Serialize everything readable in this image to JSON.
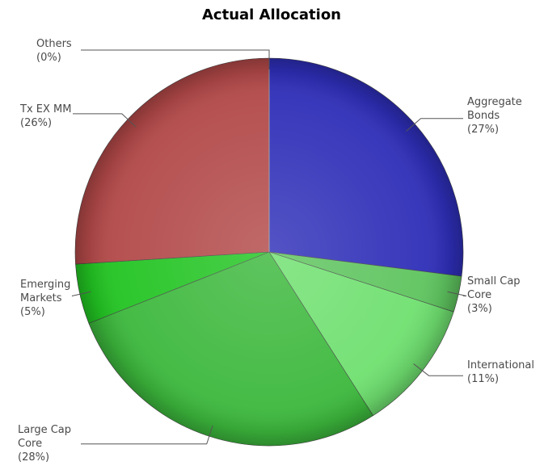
{
  "chart_data": {
    "type": "pie",
    "title": "Actual Allocation",
    "slices": [
      {
        "label_lines": [
          "Aggregate",
          "Bonds"
        ],
        "pct_text": "(27%)",
        "value": 27,
        "color": "#2e2eb8"
      },
      {
        "label_lines": [
          "Small Cap",
          "Core"
        ],
        "pct_text": "(3%)",
        "value": 3,
        "color": "#5ec45e"
      },
      {
        "label_lines": [
          "International"
        ],
        "pct_text": "(11%)",
        "value": 11,
        "color": "#6fe06f"
      },
      {
        "label_lines": [
          "Large Cap",
          "Core"
        ],
        "pct_text": "(28%)",
        "value": 28,
        "color": "#3cb83c"
      },
      {
        "label_lines": [
          "Emerging",
          "Markets"
        ],
        "pct_text": "(5%)",
        "value": 5,
        "color": "#22c422"
      },
      {
        "label_lines": [
          "Tx EX MM"
        ],
        "pct_text": "(26%)",
        "value": 26,
        "color": "#b24848"
      },
      {
        "label_lines": [
          "Others"
        ],
        "pct_text": "(0%)",
        "value": 0,
        "color": "#999999"
      }
    ],
    "legend": "none"
  }
}
